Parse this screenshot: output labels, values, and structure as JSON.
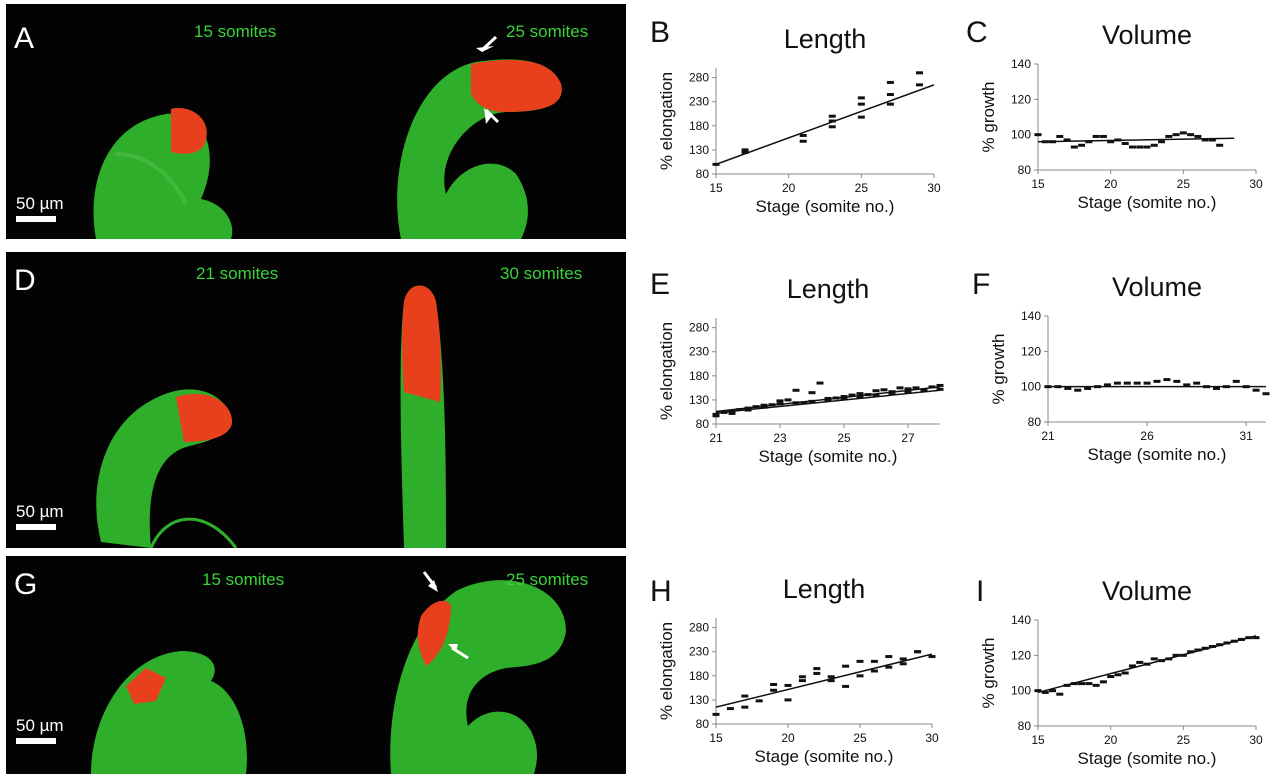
{
  "photos": [
    {
      "letter": "A",
      "left_label": "15 somites",
      "right_label": "25 somites",
      "scale_label": "50 µm"
    },
    {
      "letter": "D",
      "left_label": "21 somites",
      "right_label": "30 somites",
      "scale_label": "50 µm"
    },
    {
      "letter": "G",
      "left_label": "15 somites",
      "right_label": "25 somites",
      "scale_label": "50 µm"
    }
  ],
  "colors": {
    "embryo_green": "#2fae2b",
    "label_red": "#e8401c",
    "text_green": "#3bd13b"
  },
  "chart_data": [
    {
      "panel": "B",
      "type": "scatter",
      "title": "Length",
      "xlabel": "Stage (somite no.)",
      "ylabel": "% elongation",
      "xlim": [
        15,
        30
      ],
      "ylim": [
        80,
        300
      ],
      "xticks": [
        15,
        20,
        25,
        30
      ],
      "yticks": [
        80,
        130,
        180,
        230,
        280
      ],
      "x": [
        15,
        17,
        17,
        21,
        21,
        23,
        23,
        23,
        25,
        25,
        25,
        27,
        27,
        27,
        29,
        29
      ],
      "y": [
        100,
        125,
        130,
        148,
        160,
        178,
        190,
        200,
        198,
        225,
        238,
        225,
        245,
        270,
        265,
        290
      ],
      "trendline": [
        [
          15,
          100
        ],
        [
          30,
          265
        ]
      ]
    },
    {
      "panel": "C",
      "type": "scatter",
      "title": "Volume",
      "xlabel": "Stage (somite no.)",
      "ylabel": "% growth",
      "xlim": [
        15,
        30
      ],
      "ylim": [
        80,
        140
      ],
      "xticks": [
        15,
        20,
        25,
        30
      ],
      "yticks": [
        80,
        100,
        120,
        140
      ],
      "x": [
        15,
        15.5,
        16,
        16.5,
        17,
        17.5,
        18,
        18.5,
        19,
        19.5,
        20,
        20.5,
        21,
        21.5,
        22,
        22.5,
        23,
        23.5,
        24,
        24.5,
        25,
        25.5,
        26,
        26.5,
        27,
        27.5
      ],
      "y": [
        100,
        96,
        96,
        99,
        97,
        93,
        94,
        96,
        99,
        99,
        96,
        97,
        95,
        93,
        93,
        93,
        94,
        96,
        99,
        100,
        101,
        100,
        99,
        97,
        97,
        94
      ],
      "trendline": [
        [
          15,
          96
        ],
        [
          28.5,
          98
        ]
      ]
    },
    {
      "panel": "E",
      "type": "scatter",
      "title": "Length",
      "xlabel": "Stage (somite no.)",
      "ylabel": "% elongation",
      "xlim": [
        21,
        28
      ],
      "ylim": [
        80,
        300
      ],
      "xticks": [
        21,
        23,
        25,
        27
      ],
      "yticks": [
        80,
        130,
        180,
        230,
        280
      ],
      "x": [
        21,
        21.25,
        21.5,
        21.75,
        22,
        22.25,
        22.5,
        22.75,
        23,
        23.25,
        23.5,
        23.75,
        24,
        24.25,
        24.5,
        24.75,
        25,
        25.25,
        25.5,
        25.75,
        26,
        26.25,
        26.5,
        26.75,
        27,
        27.25,
        27.5,
        27.75,
        28,
        21,
        21.5,
        22,
        22.5,
        23,
        23.5,
        24,
        24.5,
        25,
        25.5,
        26,
        26.5,
        27,
        27.5,
        28
      ],
      "y": [
        100,
        104,
        107,
        110,
        113,
        116,
        119,
        120,
        128,
        130,
        150,
        124,
        145,
        165,
        133,
        134,
        137,
        140,
        143,
        141,
        149,
        151,
        147,
        155,
        153,
        155,
        151,
        157,
        160,
        97,
        102,
        109,
        115,
        122,
        124,
        127,
        129,
        133,
        136,
        139,
        143,
        146,
        150,
        152
      ],
      "trendline": [
        [
          21,
          106
        ],
        [
          28,
          157
        ]
      ],
      "trendline2": [
        [
          21,
          103
        ],
        [
          28,
          150
        ]
      ]
    },
    {
      "panel": "F",
      "type": "scatter",
      "title": "Volume",
      "xlabel": "Stage (somite no.)",
      "ylabel": "% growth",
      "xlim": [
        21,
        32
      ],
      "ylim": [
        80,
        140
      ],
      "xticks": [
        21,
        26,
        31
      ],
      "yticks": [
        80,
        100,
        120,
        140
      ],
      "x": [
        21,
        21.5,
        22,
        22.5,
        23,
        23.5,
        24,
        24.5,
        25,
        25.5,
        26,
        26.5,
        27,
        27.5,
        28,
        28.5,
        29,
        29.5,
        30,
        30.5,
        31,
        31.5,
        32
      ],
      "y": [
        100,
        100,
        99,
        98,
        99,
        100,
        101,
        102,
        102,
        102,
        102,
        103,
        104,
        103,
        101,
        102,
        100,
        99,
        100,
        103,
        100,
        98,
        96
      ],
      "trendline": [
        [
          21,
          100
        ],
        [
          32,
          100
        ]
      ]
    },
    {
      "panel": "H",
      "type": "scatter",
      "title": "Length",
      "xlabel": "Stage (somite no.)",
      "ylabel": "% elongation",
      "xlim": [
        15,
        30
      ],
      "ylim": [
        80,
        300
      ],
      "xticks": [
        15,
        20,
        25,
        30
      ],
      "yticks": [
        80,
        130,
        180,
        230,
        280
      ],
      "x": [
        15,
        16,
        17,
        17,
        18,
        19,
        19,
        20,
        20,
        21,
        21,
        22,
        22,
        23,
        23,
        24,
        24,
        25,
        25,
        26,
        26,
        27,
        27,
        28,
        28,
        29,
        29,
        30
      ],
      "y": [
        100,
        112,
        115,
        138,
        128,
        150,
        162,
        130,
        160,
        170,
        178,
        185,
        195,
        178,
        170,
        158,
        200,
        180,
        210,
        210,
        190,
        198,
        220,
        215,
        205,
        230,
        230,
        220
      ],
      "trendline": [
        [
          15,
          115
        ],
        [
          30,
          225
        ]
      ]
    },
    {
      "panel": "I",
      "type": "scatter",
      "title": "Volume",
      "xlabel": "Stage (somite no.)",
      "ylabel": "% growth",
      "xlim": [
        15,
        30
      ],
      "ylim": [
        80,
        140
      ],
      "xticks": [
        15,
        20,
        25,
        30
      ],
      "yticks": [
        80,
        100,
        120,
        140
      ],
      "x": [
        15,
        15.5,
        16,
        16.5,
        17,
        17.5,
        18,
        18.5,
        19,
        19.5,
        20,
        20.5,
        21,
        21.5,
        22,
        22.5,
        23,
        23.5,
        24,
        24.5,
        25,
        25.5,
        26,
        26.5,
        27,
        27.5,
        28,
        28.5,
        29,
        29.5,
        30
      ],
      "y": [
        100,
        99,
        100,
        98,
        103,
        104,
        104,
        104,
        103,
        105,
        108,
        109,
        110,
        114,
        116,
        115,
        118,
        117,
        118,
        120,
        120,
        122,
        123,
        124,
        125,
        126,
        127,
        128,
        129,
        130,
        130
      ],
      "trendline": [
        [
          15,
          99
        ],
        [
          30,
          131
        ]
      ]
    }
  ]
}
